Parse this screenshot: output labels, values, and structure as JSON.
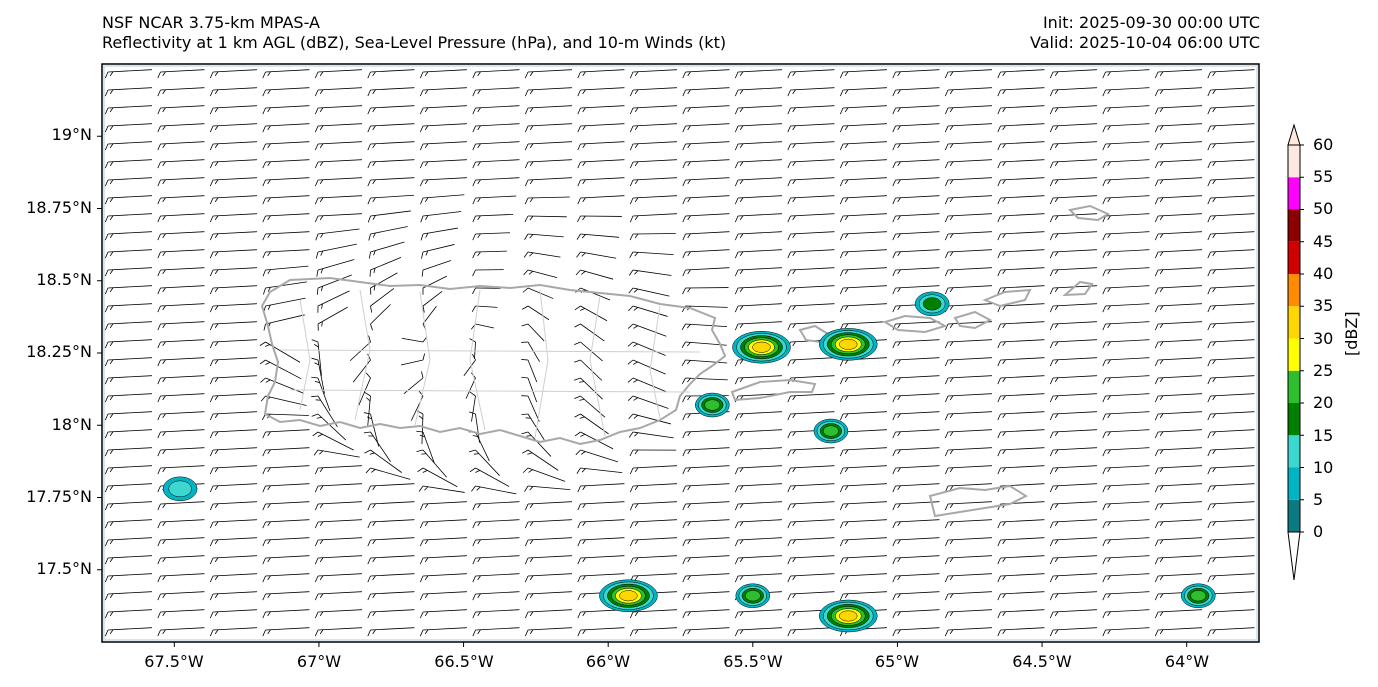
{
  "header": {
    "model": "NSF NCAR 3.75-km MPAS-A",
    "fields": "Reflectivity at 1 km AGL (dBZ), Sea-Level Pressure (hPa), and 10-m Winds (kt)",
    "init": "Init: 2025-09-30 00:00 UTC",
    "valid": "Valid: 2025-10-04 06:00 UTC"
  },
  "map": {
    "lon_range": [
      -67.75,
      -63.75
    ],
    "lat_range": [
      17.25,
      19.25
    ],
    "lat_ticks": [
      "19°N",
      "18.75°N",
      "18.5°N",
      "18.25°N",
      "18°N",
      "17.75°N",
      "17.5°N"
    ],
    "lon_ticks": [
      "67.5°W",
      "67°W",
      "66.5°W",
      "66°W",
      "65.5°W",
      "65°W",
      "64.5°W",
      "64°W"
    ],
    "wind_barbs": "east-southeasterly trade flow, weak near-calm circulation over Puerto Rico",
    "echoes": [
      {
        "lon": -65.47,
        "lat": 18.27,
        "max_dbz": 30
      },
      {
        "lon": -65.17,
        "lat": 18.28,
        "max_dbz": 30
      },
      {
        "lon": -65.64,
        "lat": 18.07,
        "max_dbz": 20
      },
      {
        "lon": -65.93,
        "lat": 17.41,
        "max_dbz": 30
      },
      {
        "lon": -65.17,
        "lat": 17.34,
        "max_dbz": 30
      },
      {
        "lon": -65.5,
        "lat": 17.41,
        "max_dbz": 20
      },
      {
        "lon": -64.88,
        "lat": 18.42,
        "max_dbz": 15
      },
      {
        "lon": -65.23,
        "lat": 17.98,
        "max_dbz": 20
      },
      {
        "lon": -63.96,
        "lat": 17.41,
        "max_dbz": 20
      },
      {
        "lon": -67.48,
        "lat": 17.78,
        "max_dbz": 10
      }
    ]
  },
  "colors": {
    "land_outline": "#a8a8a8",
    "dbz_bins": [
      "#ffffff",
      "#0c7a82",
      "#00b5c3",
      "#3cd8d0",
      "#008000",
      "#2dbf2d",
      "#ffff00",
      "#ffd700",
      "#ff8c00",
      "#d00000",
      "#8b0000",
      "#ff00ff",
      "#ffe8e0"
    ]
  },
  "colorbar": {
    "label": "[dBZ]",
    "ticks": [
      "0",
      "5",
      "10",
      "15",
      "20",
      "25",
      "30",
      "35",
      "40",
      "45",
      "50",
      "55",
      "60"
    ]
  }
}
